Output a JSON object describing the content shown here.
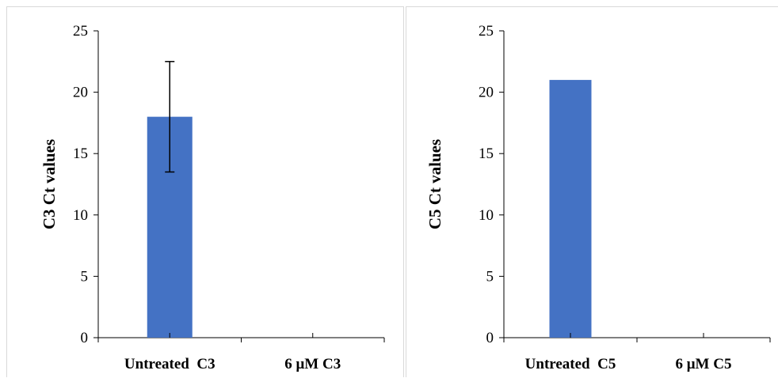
{
  "chart_data": [
    {
      "type": "bar",
      "title": "",
      "xlabel": "",
      "ylabel": "C3 Ct values",
      "ylim": [
        0,
        25
      ],
      "yticks": [
        0,
        5,
        10,
        15,
        20,
        25
      ],
      "categories": [
        "Untreated  C3",
        "6 μM C3"
      ],
      "series": [
        {
          "values": [
            18,
            0
          ],
          "error": [
            4.5,
            0
          ]
        }
      ],
      "colors": {
        "bar": "#4472C4",
        "axis": "#000000",
        "error_bar": "#000000"
      },
      "grid": false
    },
    {
      "type": "bar",
      "title": "",
      "xlabel": "",
      "ylabel": "C5 Ct values",
      "ylim": [
        0,
        25
      ],
      "yticks": [
        0,
        5,
        10,
        15,
        20,
        25
      ],
      "categories": [
        "Untreated  C5",
        "6 μM C5"
      ],
      "series": [
        {
          "values": [
            21,
            0
          ]
        }
      ],
      "colors": {
        "bar": "#4472C4",
        "axis": "#000000"
      },
      "grid": false
    }
  ]
}
